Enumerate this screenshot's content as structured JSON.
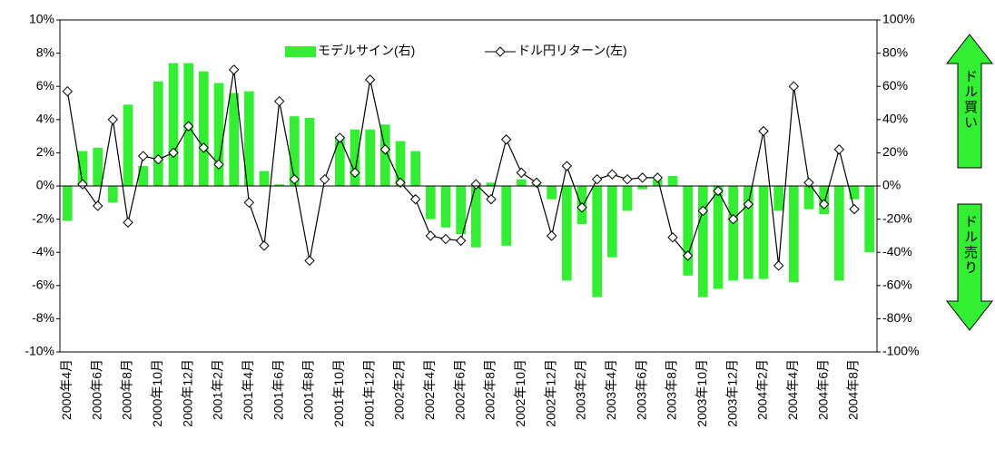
{
  "chart_data": {
    "type": "bar-line",
    "categories": [
      "2000年4月",
      null,
      "2000年6月",
      null,
      "2000年8月",
      null,
      "2000年10月",
      null,
      "2000年12月",
      null,
      "2001年2月",
      null,
      "2001年4月",
      null,
      "2001年6月",
      null,
      "2001年8月",
      null,
      "2001年10月",
      null,
      "2001年12月",
      null,
      "2002年2月",
      null,
      "2002年4月",
      null,
      "2002年6月",
      null,
      "2002年8月",
      null,
      "2002年10月",
      null,
      "2002年12月",
      null,
      "2003年2月",
      null,
      "2003年4月",
      null,
      "2003年6月",
      null,
      "2003年8月",
      null,
      "2003年10月",
      null,
      "2003年12月",
      null,
      "2004年2月",
      null,
      "2004年4月",
      null,
      "2004年6月",
      null,
      "2004年8月",
      null
    ],
    "series": [
      {
        "name": "モデルサイン(右)",
        "type": "bar",
        "axis": "y2",
        "color": "#33ee33",
        "values": [
          -21,
          21,
          23,
          -10,
          49,
          12,
          63,
          74,
          74,
          69,
          62,
          56,
          57,
          9,
          1,
          42,
          41,
          0,
          30,
          34,
          34,
          37,
          27,
          21,
          -20,
          -25,
          -29,
          -37,
          2,
          -36,
          4,
          1,
          -8,
          -57,
          -23,
          -67,
          -43,
          -15,
          -2,
          4,
          6,
          -54,
          -67,
          -62,
          -57,
          -56,
          -56,
          -15,
          -58,
          -14,
          -17,
          -57,
          -8,
          -40
        ]
      },
      {
        "name": "ドル円リターン(左)",
        "type": "line",
        "color": "#000000",
        "values": [
          5.7,
          0.1,
          -1.2,
          4.0,
          -2.2,
          1.8,
          1.6,
          2.0,
          3.6,
          2.3,
          1.3,
          7.0,
          -1.0,
          -3.6,
          5.1,
          0.4,
          -4.5,
          0.4,
          2.9,
          0.8,
          6.4,
          2.2,
          0.2,
          -0.8,
          -3.0,
          -3.2,
          -3.3,
          0.1,
          -0.8,
          2.8,
          0.8,
          0.2,
          -3.0,
          1.2,
          -1.3,
          0.4,
          0.7,
          0.4,
          0.5,
          0.5,
          -3.1,
          -4.2,
          -1.5,
          -0.3,
          -2.0,
          -1.1,
          3.3,
          -4.8,
          6.0,
          0.2,
          -1.1,
          2.2,
          -1.4,
          null
        ]
      }
    ],
    "ylim": [
      -10,
      10
    ],
    "yticks": [
      {
        "value": -10,
        "label": "-10%"
      },
      {
        "value": -8,
        "label": "-8%"
      },
      {
        "value": -6,
        "label": "-6%"
      },
      {
        "value": -4,
        "label": "-4%"
      },
      {
        "value": -2,
        "label": "-2%"
      },
      {
        "value": 0,
        "label": "0%"
      },
      {
        "value": 2,
        "label": "2%"
      },
      {
        "value": 4,
        "label": "4%"
      },
      {
        "value": 6,
        "label": "6%"
      },
      {
        "value": 8,
        "label": "8%"
      },
      {
        "value": 10,
        "label": "10%"
      }
    ],
    "y2lim": [
      -100,
      100
    ],
    "y2ticks": [
      {
        "value": -100,
        "label": "-100%"
      },
      {
        "value": -80,
        "label": "-80%"
      },
      {
        "value": -60,
        "label": "-60%"
      },
      {
        "value": -40,
        "label": "-40%"
      },
      {
        "value": -20,
        "label": "-20%"
      },
      {
        "value": 0,
        "label": "0%"
      },
      {
        "value": 20,
        "label": "20%"
      },
      {
        "value": 40,
        "label": "40%"
      },
      {
        "value": 60,
        "label": "60%"
      },
      {
        "value": 80,
        "label": "80%"
      },
      {
        "value": 100,
        "label": "100%"
      }
    ],
    "annotations": [
      "ドル買い",
      "ドル売り"
    ]
  }
}
